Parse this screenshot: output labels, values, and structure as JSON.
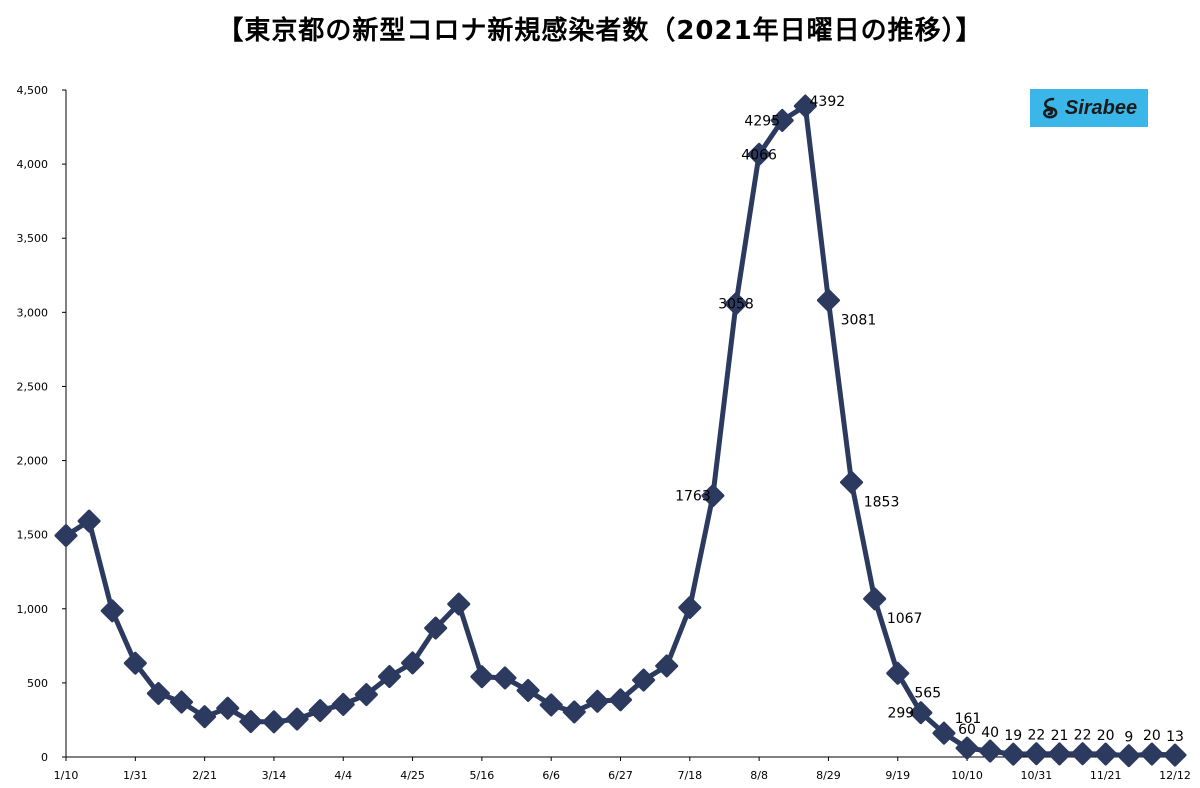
{
  "title": "【東京都の新型コロナ新規感染者数（2021年日曜日の推移）】",
  "brand": {
    "name": "Sirabee",
    "bg_color": "#3bb6e8",
    "icon": "sirabee-swirl-icon"
  },
  "colors": {
    "line": "#2b3a5e",
    "axis": "#000000",
    "text": "#000000"
  },
  "chart_data": {
    "type": "line",
    "title": "【東京都の新型コロナ新規感染者数（2021年日曜日の推移）】",
    "xlabel": "",
    "ylabel": "",
    "ylim": [
      0,
      4500
    ],
    "yticks": [
      0,
      500,
      1000,
      1500,
      2000,
      2500,
      3000,
      3500,
      4000,
      4500
    ],
    "ytick_labels": [
      "0",
      "500",
      "1,000",
      "1,500",
      "2,000",
      "2,500",
      "3,000",
      "3,500",
      "4,000",
      "4,500"
    ],
    "grid": false,
    "legend": "none",
    "x": [
      "1/10",
      "1/17",
      "1/24",
      "1/31",
      "2/7",
      "2/14",
      "2/21",
      "2/28",
      "3/7",
      "3/14",
      "3/21",
      "3/28",
      "4/4",
      "4/11",
      "4/18",
      "4/25",
      "5/2",
      "5/9",
      "5/16",
      "5/23",
      "5/30",
      "6/6",
      "6/13",
      "6/20",
      "6/27",
      "7/4",
      "7/11",
      "7/18",
      "7/25",
      "8/1",
      "8/8",
      "8/15",
      "8/22",
      "8/29",
      "9/5",
      "9/12",
      "9/19",
      "9/26",
      "10/3",
      "10/10",
      "10/17",
      "10/24",
      "10/31",
      "11/7",
      "11/14",
      "11/21",
      "11/28",
      "12/5",
      "12/12"
    ],
    "x_tick_labels": [
      "1/10",
      "1/31",
      "2/21",
      "3/14",
      "4/4",
      "4/25",
      "5/16",
      "6/6",
      "6/27",
      "7/18",
      "8/8",
      "8/29",
      "9/19",
      "10/10",
      "10/31",
      "11/21",
      "12/12"
    ],
    "values": [
      1494,
      1592,
      986,
      633,
      429,
      371,
      272,
      329,
      239,
      237,
      256,
      313,
      355,
      421,
      543,
      635,
      870,
      1032,
      542,
      533,
      449,
      351,
      304,
      376,
      386,
      519,
      614,
      1008,
      1763,
      3058,
      4066,
      4295,
      4392,
      3081,
      1853,
      1067,
      565,
      299,
      161,
      60,
      40,
      19,
      22,
      21,
      22,
      20,
      9,
      20,
      13
    ],
    "labeled_points": [
      {
        "index": 28,
        "label": "1763",
        "pos": "left"
      },
      {
        "index": 29,
        "label": "3058",
        "pos": "on"
      },
      {
        "index": 30,
        "label": "4066",
        "pos": "on"
      },
      {
        "index": 31,
        "label": "4295",
        "pos": "left"
      },
      {
        "index": 32,
        "label": "4392",
        "pos": "right"
      },
      {
        "index": 33,
        "label": "3081",
        "pos": "below-right"
      },
      {
        "index": 34,
        "label": "1853",
        "pos": "below-right"
      },
      {
        "index": 35,
        "label": "1067",
        "pos": "below-right"
      },
      {
        "index": 36,
        "label": "565",
        "pos": "below-right"
      },
      {
        "index": 37,
        "label": "299",
        "pos": "left"
      },
      {
        "index": 38,
        "label": "161",
        "pos": "above-right"
      },
      {
        "index": 39,
        "label": "60",
        "pos": "above"
      },
      {
        "index": 40,
        "label": "40",
        "pos": "above"
      },
      {
        "index": 41,
        "label": "19",
        "pos": "above"
      },
      {
        "index": 42,
        "label": "22",
        "pos": "above"
      },
      {
        "index": 43,
        "label": "21",
        "pos": "above"
      },
      {
        "index": 44,
        "label": "22",
        "pos": "above"
      },
      {
        "index": 45,
        "label": "20",
        "pos": "above"
      },
      {
        "index": 46,
        "label": "9",
        "pos": "above"
      },
      {
        "index": 47,
        "label": "20",
        "pos": "above"
      },
      {
        "index": 48,
        "label": "13",
        "pos": "above"
      }
    ]
  }
}
